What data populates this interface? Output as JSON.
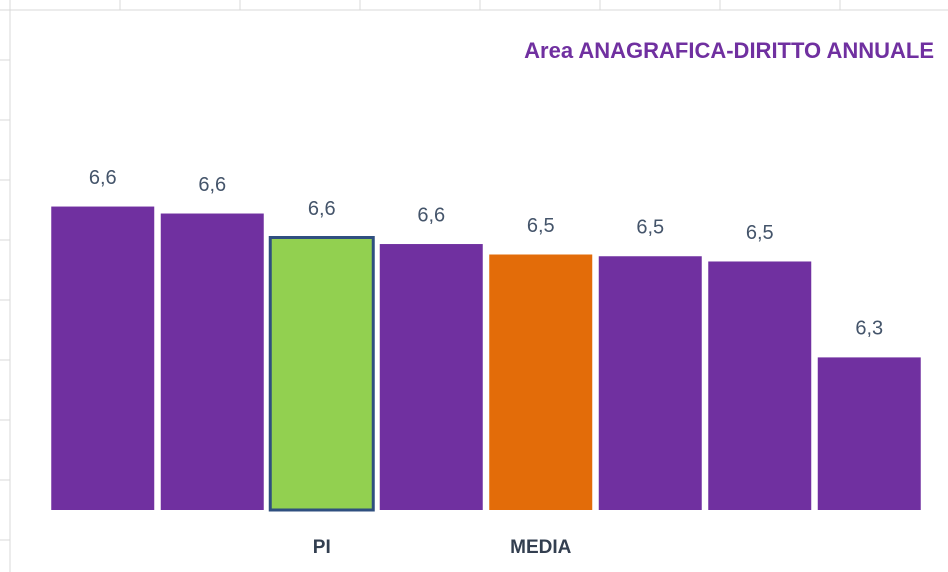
{
  "chart_data": {
    "type": "bar",
    "title": "Area ANAGRAFICA-DIRITTO ANNUALE",
    "categories": [
      null,
      null,
      "PI",
      null,
      "MEDIA",
      null,
      null,
      null
    ],
    "values": [
      6.646,
      6.63,
      6.575,
      6.56,
      6.536,
      6.532,
      6.52,
      6.3
    ],
    "value_labels": [
      "6,6",
      "6,6",
      "6,6",
      "6,6",
      "6,5",
      "6,5",
      "6,5",
      "6,3"
    ],
    "colors": [
      "#7030a0",
      "#7030a0",
      "#92d050",
      "#7030a0",
      "#e36c09",
      "#7030a0",
      "#7030a0",
      "#7030a0"
    ],
    "outline": {
      "index": 2,
      "color": "#2f4f7f"
    },
    "ylim": [
      5.95,
      6.7
    ]
  }
}
